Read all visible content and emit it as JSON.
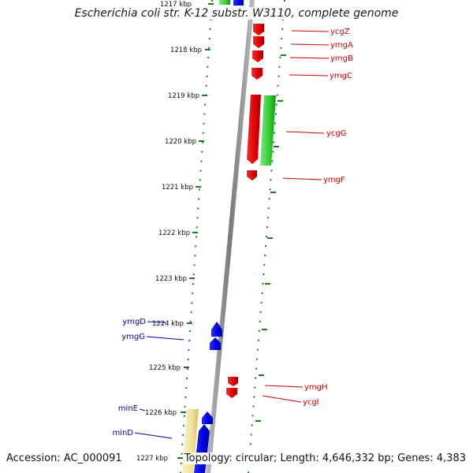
{
  "header": {
    "title": "Escherichia coli str. K-12 substr. W3110, complete genome"
  },
  "footer": {
    "accession": "Accession: AC_000091",
    "summary": "Topology: circular; Length: 4,646,332 bp; Genes: 4,383"
  },
  "colors": {
    "scale_tick": "#1d7a1d",
    "forward_gene": "#e00000",
    "reverse_gene": "#0000e6",
    "other_gene": "#2ecc2e",
    "highlight_gene": "#efe29a",
    "backbone": "#808080",
    "red_label": "#cc0000",
    "blue_label": "#0000aa"
  },
  "scale": {
    "unit": "kbp",
    "labels": [
      "1217 kbp",
      "1218 kbp",
      "1219 kbp",
      "1220 kbp",
      "1221 kbp",
      "1222 kbp",
      "1223 kbp",
      "1224 kbp",
      "1225 kbp",
      "1226 kbp",
      "1227 kbp"
    ]
  },
  "genes": {
    "right": [
      "ycgZ",
      "ymgA",
      "ymgB",
      "ymgC",
      "ycgG",
      "ymgF",
      "ymgH",
      "ycgI"
    ],
    "left": [
      "ymgD",
      "ymgG",
      "minE",
      "minD"
    ]
  }
}
